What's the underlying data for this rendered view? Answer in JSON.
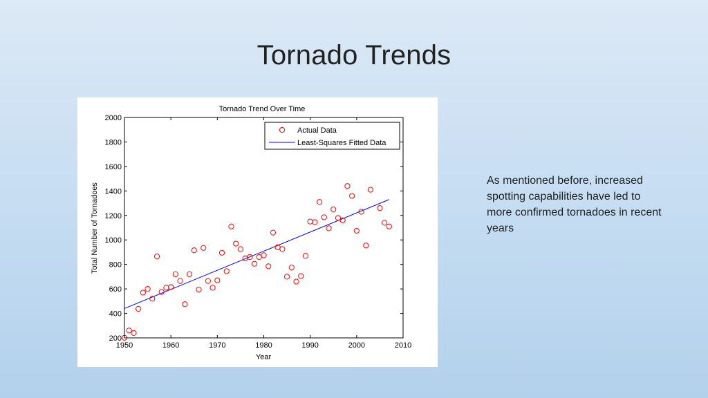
{
  "slide": {
    "title": "Tornado Trends",
    "note": "As mentioned before, increased spotting capabilities have led to more confirmed tornadoes in recent years"
  },
  "colors": {
    "actual": "#ff0000",
    "fit": "#0000ff"
  },
  "chart_data": {
    "type": "scatter",
    "title": "Tornado Trend Over Time",
    "xlabel": "Year",
    "ylabel": "Total Number of Tornadoes",
    "xlim": [
      1950,
      2010
    ],
    "ylim": [
      200,
      2000
    ],
    "xticks": [
      1950,
      1960,
      1970,
      1980,
      1990,
      2000,
      2010
    ],
    "yticks": [
      200,
      400,
      600,
      800,
      1000,
      1200,
      1400,
      1600,
      1800,
      2000
    ],
    "grid": false,
    "legend_position": "top-right",
    "series": [
      {
        "name": "Actual Data",
        "marker": "circle",
        "points": [
          [
            1950,
            201
          ],
          [
            1951,
            260
          ],
          [
            1952,
            240
          ],
          [
            1953,
            437
          ],
          [
            1954,
            570
          ],
          [
            1955,
            600
          ],
          [
            1956,
            520
          ],
          [
            1957,
            865
          ],
          [
            1958,
            575
          ],
          [
            1959,
            610
          ],
          [
            1960,
            615
          ],
          [
            1961,
            720
          ],
          [
            1962,
            665
          ],
          [
            1963,
            475
          ],
          [
            1964,
            720
          ],
          [
            1965,
            915
          ],
          [
            1966,
            595
          ],
          [
            1967,
            935
          ],
          [
            1968,
            665
          ],
          [
            1969,
            610
          ],
          [
            1970,
            670
          ],
          [
            1971,
            895
          ],
          [
            1972,
            745
          ],
          [
            1973,
            1110
          ],
          [
            1974,
            970
          ],
          [
            1975,
            925
          ],
          [
            1976,
            850
          ],
          [
            1977,
            860
          ],
          [
            1978,
            805
          ],
          [
            1979,
            860
          ],
          [
            1980,
            875
          ],
          [
            1981,
            785
          ],
          [
            1982,
            1060
          ],
          [
            1983,
            940
          ],
          [
            1984,
            925
          ],
          [
            1985,
            700
          ],
          [
            1986,
            775
          ],
          [
            1987,
            660
          ],
          [
            1988,
            705
          ],
          [
            1989,
            870
          ],
          [
            1990,
            1150
          ],
          [
            1991,
            1145
          ],
          [
            1992,
            1310
          ],
          [
            1993,
            1185
          ],
          [
            1994,
            1095
          ],
          [
            1995,
            1250
          ],
          [
            1996,
            1180
          ],
          [
            1997,
            1160
          ],
          [
            1998,
            1440
          ],
          [
            1999,
            1360
          ],
          [
            2000,
            1075
          ],
          [
            2001,
            1230
          ],
          [
            2002,
            955
          ],
          [
            2003,
            1410
          ],
          [
            2005,
            1260
          ],
          [
            2006,
            1140
          ],
          [
            2007,
            1110
          ]
        ]
      },
      {
        "name": "Least-Squares Fitted Data",
        "type": "line",
        "points": [
          [
            1950,
            440
          ],
          [
            2007,
            1330
          ]
        ]
      }
    ]
  }
}
